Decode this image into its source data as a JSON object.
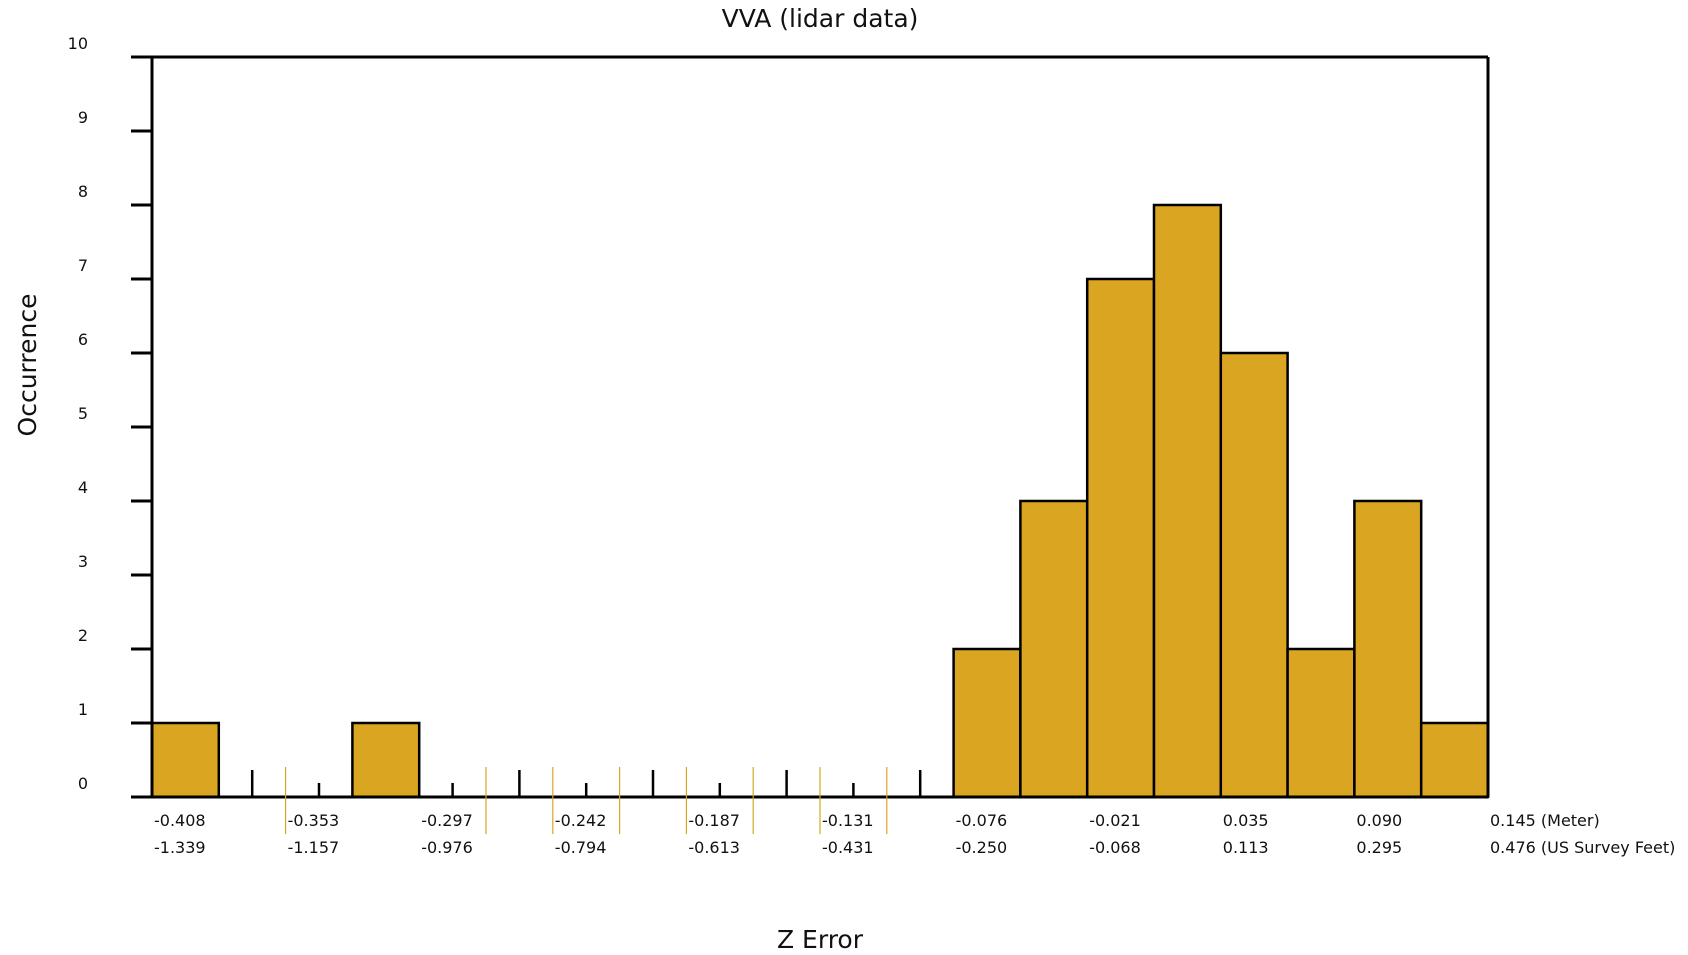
{
  "chart_data": {
    "type": "bar",
    "title": "VVA (lidar data)",
    "xlabel": "Z Error",
    "ylabel": "Occurrence",
    "ylim": [
      0,
      10
    ],
    "yticks": [
      "0",
      "1",
      "2",
      "3",
      "4",
      "5",
      "6",
      "7",
      "8",
      "9",
      "10"
    ],
    "bins": 20,
    "values": [
      1,
      0,
      0,
      1,
      0,
      0,
      0,
      0,
      0,
      0,
      0,
      0,
      2,
      4,
      7,
      8,
      6,
      2,
      4,
      1
    ],
    "xticks_meter": [
      "-0.408",
      "-0.353",
      "-0.297",
      "-0.242",
      "-0.187",
      "-0.131",
      "-0.076",
      "-0.021",
      "0.035",
      "0.090",
      "0.145 (Meter)"
    ],
    "xticks_feet": [
      "-1.339",
      "-1.157",
      "-0.976",
      "-0.794",
      "-0.613",
      "-0.431",
      "-0.250",
      "-0.068",
      "0.113",
      "0.295",
      "0.476 (US Survey Feet)"
    ],
    "bar_color": "#DAA520",
    "grid": false
  }
}
